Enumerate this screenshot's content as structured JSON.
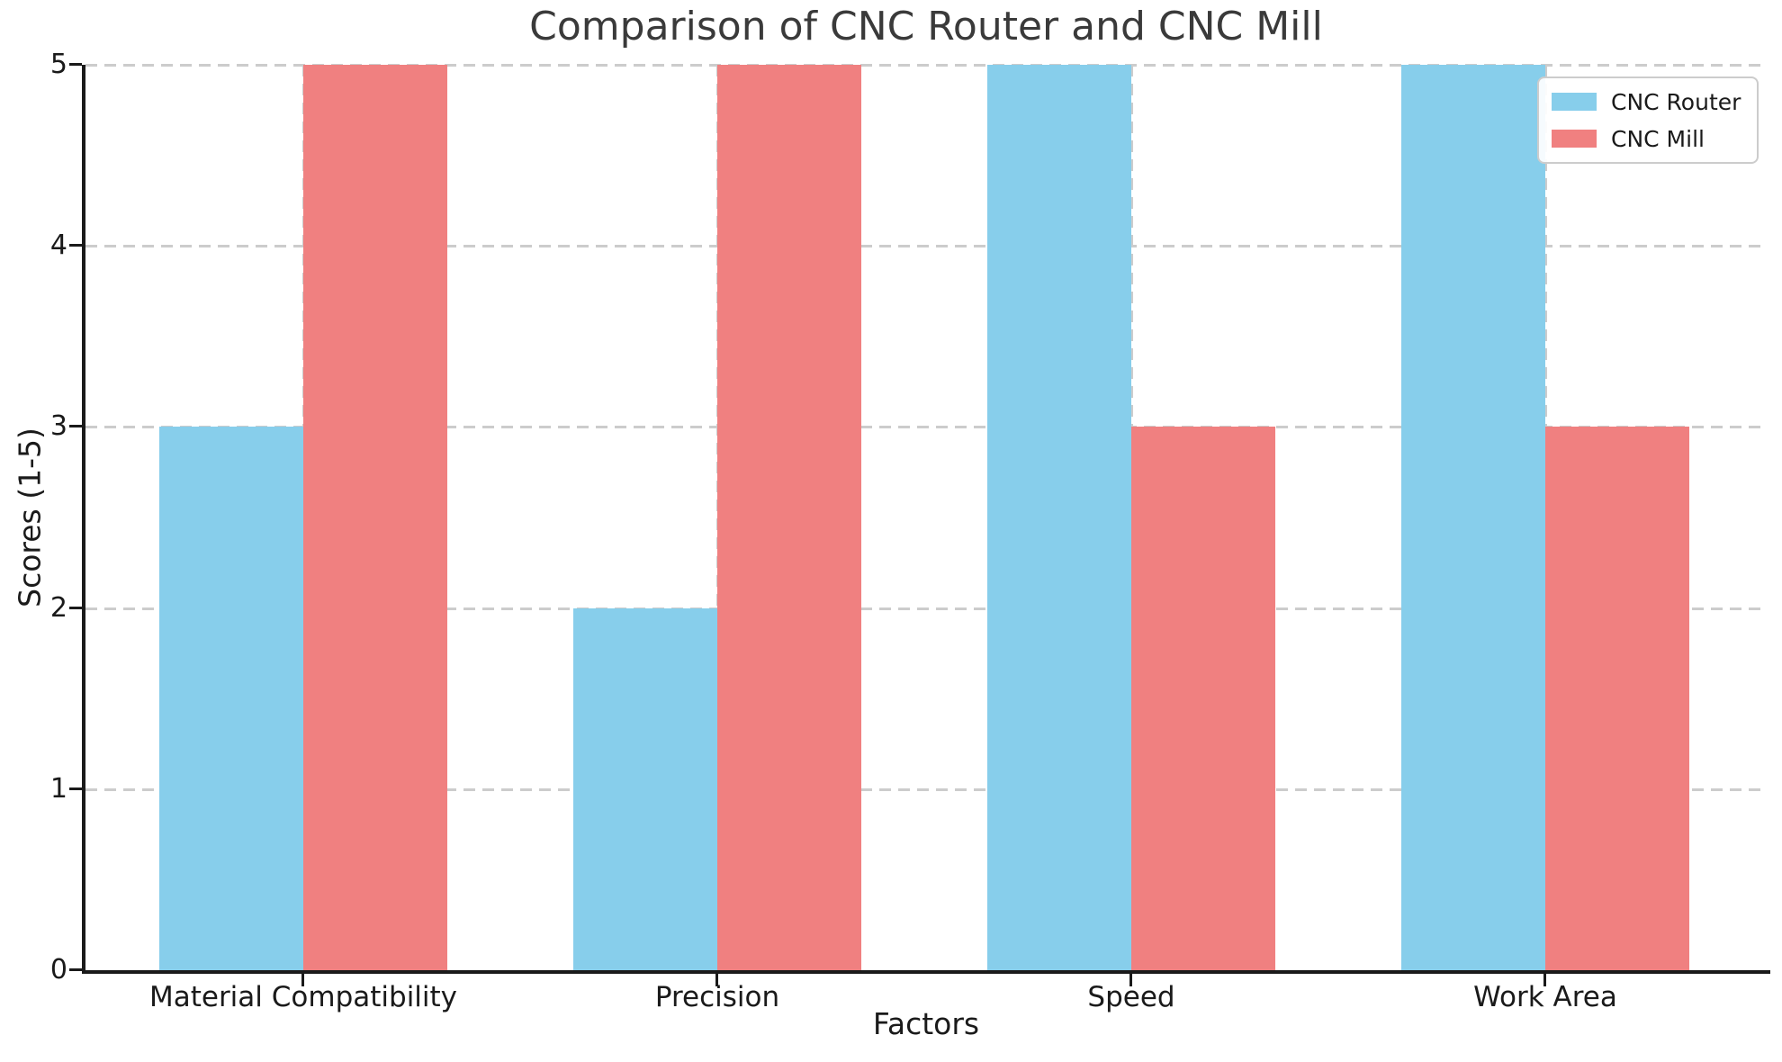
{
  "chart_data": {
    "type": "bar",
    "title": "Comparison of CNC Router and CNC Mill",
    "xlabel": "Factors",
    "ylabel": "Scores (1-5)",
    "categories": [
      "Material Compatibility",
      "Precision",
      "Speed",
      "Work Area"
    ],
    "series": [
      {
        "name": "CNC Router",
        "color": "#87CEEB",
        "values": [
          3,
          2,
          5,
          5
        ]
      },
      {
        "name": "CNC Mill",
        "color": "#F08080",
        "values": [
          5,
          5,
          3,
          3
        ]
      }
    ],
    "ylim": [
      0,
      5
    ],
    "yticks": [
      0,
      1,
      2,
      3,
      4,
      5
    ],
    "grid": true,
    "grid_style": "dashed",
    "grid_color": "#CCCCCC",
    "axis_color": "#1A1A1A",
    "title_color": "#3A3A3A",
    "legend_position": "upper right"
  }
}
